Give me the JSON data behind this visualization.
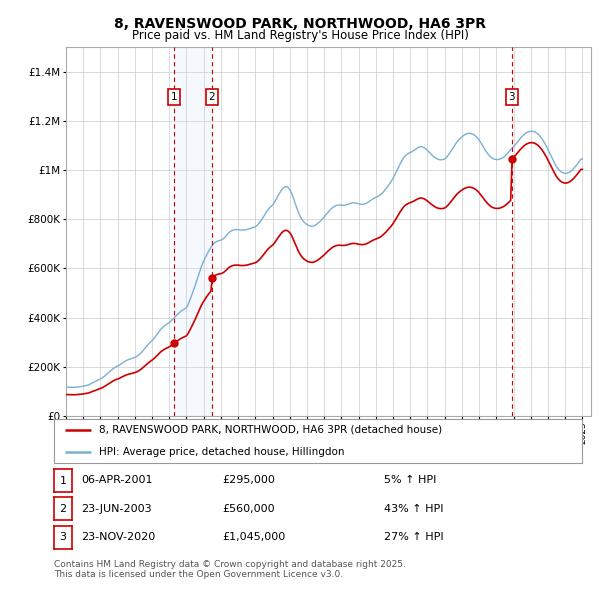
{
  "title": "8, RAVENSWOOD PARK, NORTHWOOD, HA6 3PR",
  "subtitle": "Price paid vs. HM Land Registry's House Price Index (HPI)",
  "ylim": [
    0,
    1500000
  ],
  "xlim_start": 1995.0,
  "xlim_end": 2025.5,
  "background_color": "#ffffff",
  "grid_color": "#cccccc",
  "hpi_line_color": "#7bafd4",
  "price_line_color": "#cc0000",
  "shade_color": "#ddeeff",
  "legend_property_label": "8, RAVENSWOOD PARK, NORTHWOOD, HA6 3PR (detached house)",
  "legend_hpi_label": "HPI: Average price, detached house, Hillingdon",
  "transactions": [
    {
      "id": 1,
      "date_dec": 2001.27,
      "price": 295000,
      "date_str": "06-APR-2001",
      "pct": "5%",
      "dir": "↑"
    },
    {
      "id": 2,
      "date_dec": 2003.48,
      "price": 560000,
      "date_str": "23-JUN-2003",
      "pct": "43%",
      "dir": "↑"
    },
    {
      "id": 3,
      "date_dec": 2020.9,
      "price": 1045000,
      "date_str": "23-NOV-2020",
      "pct": "27%",
      "dir": "↑"
    }
  ],
  "footer": "Contains HM Land Registry data © Crown copyright and database right 2025.\nThis data is licensed under the Open Government Licence v3.0.",
  "hpi_data_years": [
    1995.0,
    1995.083,
    1995.167,
    1995.25,
    1995.333,
    1995.417,
    1995.5,
    1995.583,
    1995.667,
    1995.75,
    1995.833,
    1995.917,
    1996.0,
    1996.083,
    1996.167,
    1996.25,
    1996.333,
    1996.417,
    1996.5,
    1996.583,
    1996.667,
    1996.75,
    1996.833,
    1996.917,
    1997.0,
    1997.083,
    1997.167,
    1997.25,
    1997.333,
    1997.417,
    1997.5,
    1997.583,
    1997.667,
    1997.75,
    1997.833,
    1997.917,
    1998.0,
    1998.083,
    1998.167,
    1998.25,
    1998.333,
    1998.417,
    1998.5,
    1998.583,
    1998.667,
    1998.75,
    1998.833,
    1998.917,
    1999.0,
    1999.083,
    1999.167,
    1999.25,
    1999.333,
    1999.417,
    1999.5,
    1999.583,
    1999.667,
    1999.75,
    1999.833,
    1999.917,
    2000.0,
    2000.083,
    2000.167,
    2000.25,
    2000.333,
    2000.417,
    2000.5,
    2000.583,
    2000.667,
    2000.75,
    2000.833,
    2000.917,
    2001.0,
    2001.083,
    2001.167,
    2001.25,
    2001.333,
    2001.417,
    2001.5,
    2001.583,
    2001.667,
    2001.75,
    2001.833,
    2001.917,
    2002.0,
    2002.083,
    2002.167,
    2002.25,
    2002.333,
    2002.417,
    2002.5,
    2002.583,
    2002.667,
    2002.75,
    2002.833,
    2002.917,
    2003.0,
    2003.083,
    2003.167,
    2003.25,
    2003.333,
    2003.417,
    2003.5,
    2003.583,
    2003.667,
    2003.75,
    2003.833,
    2003.917,
    2004.0,
    2004.083,
    2004.167,
    2004.25,
    2004.333,
    2004.417,
    2004.5,
    2004.583,
    2004.667,
    2004.75,
    2004.833,
    2004.917,
    2005.0,
    2005.083,
    2005.167,
    2005.25,
    2005.333,
    2005.417,
    2005.5,
    2005.583,
    2005.667,
    2005.75,
    2005.833,
    2005.917,
    2006.0,
    2006.083,
    2006.167,
    2006.25,
    2006.333,
    2006.417,
    2006.5,
    2006.583,
    2006.667,
    2006.75,
    2006.833,
    2006.917,
    2007.0,
    2007.083,
    2007.167,
    2007.25,
    2007.333,
    2007.417,
    2007.5,
    2007.583,
    2007.667,
    2007.75,
    2007.833,
    2007.917,
    2008.0,
    2008.083,
    2008.167,
    2008.25,
    2008.333,
    2008.417,
    2008.5,
    2008.583,
    2008.667,
    2008.75,
    2008.833,
    2008.917,
    2009.0,
    2009.083,
    2009.167,
    2009.25,
    2009.333,
    2009.417,
    2009.5,
    2009.583,
    2009.667,
    2009.75,
    2009.833,
    2009.917,
    2010.0,
    2010.083,
    2010.167,
    2010.25,
    2010.333,
    2010.417,
    2010.5,
    2010.583,
    2010.667,
    2010.75,
    2010.833,
    2010.917,
    2011.0,
    2011.083,
    2011.167,
    2011.25,
    2011.333,
    2011.417,
    2011.5,
    2011.583,
    2011.667,
    2011.75,
    2011.833,
    2011.917,
    2012.0,
    2012.083,
    2012.167,
    2012.25,
    2012.333,
    2012.417,
    2012.5,
    2012.583,
    2012.667,
    2012.75,
    2012.833,
    2012.917,
    2013.0,
    2013.083,
    2013.167,
    2013.25,
    2013.333,
    2013.417,
    2013.5,
    2013.583,
    2013.667,
    2013.75,
    2013.833,
    2013.917,
    2014.0,
    2014.083,
    2014.167,
    2014.25,
    2014.333,
    2014.417,
    2014.5,
    2014.583,
    2014.667,
    2014.75,
    2014.833,
    2014.917,
    2015.0,
    2015.083,
    2015.167,
    2015.25,
    2015.333,
    2015.417,
    2015.5,
    2015.583,
    2015.667,
    2015.75,
    2015.833,
    2015.917,
    2016.0,
    2016.083,
    2016.167,
    2016.25,
    2016.333,
    2016.417,
    2016.5,
    2016.583,
    2016.667,
    2016.75,
    2016.833,
    2016.917,
    2017.0,
    2017.083,
    2017.167,
    2017.25,
    2017.333,
    2017.417,
    2017.5,
    2017.583,
    2017.667,
    2017.75,
    2017.833,
    2017.917,
    2018.0,
    2018.083,
    2018.167,
    2018.25,
    2018.333,
    2018.417,
    2018.5,
    2018.583,
    2018.667,
    2018.75,
    2018.833,
    2018.917,
    2019.0,
    2019.083,
    2019.167,
    2019.25,
    2019.333,
    2019.417,
    2019.5,
    2019.583,
    2019.667,
    2019.75,
    2019.833,
    2019.917,
    2020.0,
    2020.083,
    2020.167,
    2020.25,
    2020.333,
    2020.417,
    2020.5,
    2020.583,
    2020.667,
    2020.75,
    2020.833,
    2020.917,
    2021.0,
    2021.083,
    2021.167,
    2021.25,
    2021.333,
    2021.417,
    2021.5,
    2021.583,
    2021.667,
    2021.75,
    2021.833,
    2021.917,
    2022.0,
    2022.083,
    2022.167,
    2022.25,
    2022.333,
    2022.417,
    2022.5,
    2022.583,
    2022.667,
    2022.75,
    2022.833,
    2022.917,
    2023.0,
    2023.083,
    2023.167,
    2023.25,
    2023.333,
    2023.417,
    2023.5,
    2023.583,
    2023.667,
    2023.75,
    2023.833,
    2023.917,
    2024.0,
    2024.083,
    2024.167,
    2024.25,
    2024.333,
    2024.417,
    2024.5,
    2024.583,
    2024.667,
    2024.75,
    2024.833,
    2024.917,
    2025.0
  ],
  "hpi_data_values": [
    118000,
    117500,
    117000,
    116800,
    116500,
    116200,
    116500,
    117000,
    117500,
    118000,
    119000,
    120000,
    121000,
    122000,
    123500,
    125000,
    127000,
    130000,
    133000,
    136000,
    139000,
    142000,
    145000,
    148000,
    151000,
    154000,
    158000,
    163000,
    168000,
    173000,
    178000,
    183000,
    188000,
    193000,
    197000,
    200000,
    203000,
    206000,
    210000,
    214000,
    218000,
    222000,
    225000,
    228000,
    230000,
    232000,
    234000,
    236000,
    238000,
    241000,
    245000,
    250000,
    255000,
    261000,
    268000,
    275000,
    282000,
    289000,
    295000,
    301000,
    307000,
    313000,
    320000,
    328000,
    336000,
    344000,
    352000,
    358000,
    363000,
    368000,
    372000,
    376000,
    380000,
    385000,
    391000,
    397000,
    403000,
    409000,
    415000,
    420000,
    425000,
    429000,
    433000,
    437000,
    440000,
    452000,
    466000,
    481000,
    497000,
    513000,
    530000,
    548000,
    566000,
    585000,
    601000,
    617000,
    630000,
    643000,
    655000,
    666000,
    676000,
    685000,
    694000,
    701000,
    706000,
    710000,
    712000,
    714000,
    715000,
    718000,
    722000,
    728000,
    735000,
    742000,
    748000,
    752000,
    755000,
    757000,
    758000,
    758000,
    758000,
    757000,
    756000,
    756000,
    756000,
    757000,
    758000,
    760000,
    762000,
    764000,
    766000,
    768000,
    770000,
    774000,
    780000,
    787000,
    795000,
    804000,
    813000,
    823000,
    832000,
    840000,
    847000,
    853000,
    858000,
    866000,
    876000,
    887000,
    898000,
    908000,
    917000,
    925000,
    930000,
    933000,
    932000,
    928000,
    921000,
    910000,
    895000,
    878000,
    860000,
    843000,
    828000,
    815000,
    804000,
    795000,
    788000,
    783000,
    778000,
    775000,
    773000,
    772000,
    772000,
    774000,
    777000,
    781000,
    786000,
    791000,
    797000,
    803000,
    810000,
    817000,
    824000,
    831000,
    837000,
    843000,
    848000,
    852000,
    855000,
    857000,
    858000,
    858000,
    857000,
    857000,
    857000,
    858000,
    860000,
    862000,
    864000,
    866000,
    867000,
    867000,
    866000,
    865000,
    863000,
    862000,
    861000,
    861000,
    862000,
    864000,
    867000,
    871000,
    875000,
    879000,
    883000,
    886000,
    889000,
    892000,
    895000,
    899000,
    904000,
    910000,
    917000,
    924000,
    932000,
    940000,
    948000,
    957000,
    967000,
    978000,
    990000,
    1002000,
    1014000,
    1026000,
    1037000,
    1047000,
    1055000,
    1061000,
    1066000,
    1069000,
    1072000,
    1075000,
    1078000,
    1082000,
    1086000,
    1090000,
    1093000,
    1095000,
    1095000,
    1093000,
    1090000,
    1085000,
    1080000,
    1074000,
    1068000,
    1062000,
    1057000,
    1052000,
    1048000,
    1045000,
    1043000,
    1042000,
    1042000,
    1043000,
    1045000,
    1050000,
    1057000,
    1065000,
    1074000,
    1083000,
    1092000,
    1101000,
    1110000,
    1118000,
    1124000,
    1130000,
    1135000,
    1140000,
    1144000,
    1147000,
    1149000,
    1150000,
    1149000,
    1148000,
    1145000,
    1141000,
    1136000,
    1130000,
    1122000,
    1113000,
    1104000,
    1094000,
    1084000,
    1075000,
    1067000,
    1060000,
    1054000,
    1049000,
    1046000,
    1044000,
    1043000,
    1043000,
    1044000,
    1046000,
    1049000,
    1052000,
    1057000,
    1063000,
    1069000,
    1076000,
    1083000,
    1090000,
    1095000,
    1102000,
    1109000,
    1116000,
    1124000,
    1131000,
    1137000,
    1143000,
    1148000,
    1152000,
    1155000,
    1157000,
    1158000,
    1158000,
    1157000,
    1155000,
    1151000,
    1147000,
    1141000,
    1134000,
    1126000,
    1117000,
    1107000,
    1096000,
    1084000,
    1072000,
    1059000,
    1047000,
    1035000,
    1024000,
    1014000,
    1006000,
    999000,
    994000,
    990000,
    988000,
    987000,
    987000,
    989000,
    992000,
    996000,
    1001000,
    1007000,
    1014000,
    1021000,
    1029000,
    1037000,
    1045000,
    1045000
  ]
}
